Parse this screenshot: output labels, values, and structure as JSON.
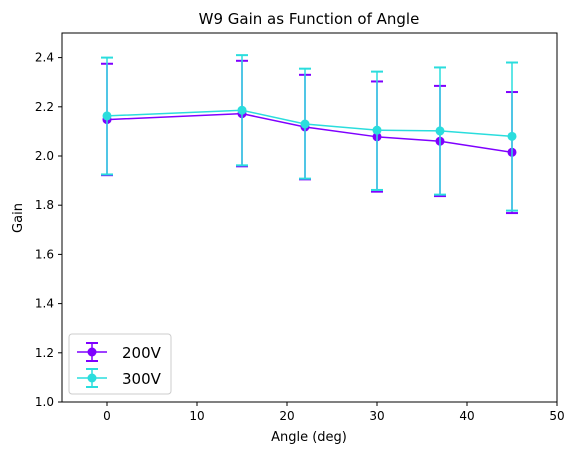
{
  "chart_data": {
    "type": "line",
    "title": "W9 Gain as Function of Angle",
    "xlabel": "Angle (deg)",
    "ylabel": "Gain",
    "xlim": [
      -5,
      50
    ],
    "ylim": [
      1.0,
      2.5
    ],
    "xticks": [
      0,
      10,
      20,
      30,
      40,
      50
    ],
    "yticks": [
      1.0,
      1.2,
      1.4,
      1.6,
      1.8,
      2.0,
      2.2,
      2.4
    ],
    "x": [
      0,
      15,
      22,
      30,
      37,
      45
    ],
    "grid": false,
    "legend_position": "lower-left",
    "error_bars": true,
    "series": [
      {
        "name": "200V",
        "color": "#7f00ff",
        "values": [
          2.148,
          2.172,
          2.118,
          2.078,
          2.06,
          2.015
        ],
        "err_low": [
          1.922,
          1.958,
          1.905,
          1.855,
          1.837,
          1.768
        ],
        "err_high": [
          2.375,
          2.387,
          2.33,
          2.303,
          2.285,
          2.26
        ]
      },
      {
        "name": "300V",
        "color": "#2adddd",
        "values": [
          2.163,
          2.186,
          2.13,
          2.105,
          2.102,
          2.08
        ],
        "err_low": [
          1.925,
          1.962,
          1.908,
          1.862,
          1.843,
          1.778
        ],
        "err_high": [
          2.4,
          2.41,
          2.355,
          2.343,
          2.36,
          2.38
        ]
      }
    ]
  }
}
